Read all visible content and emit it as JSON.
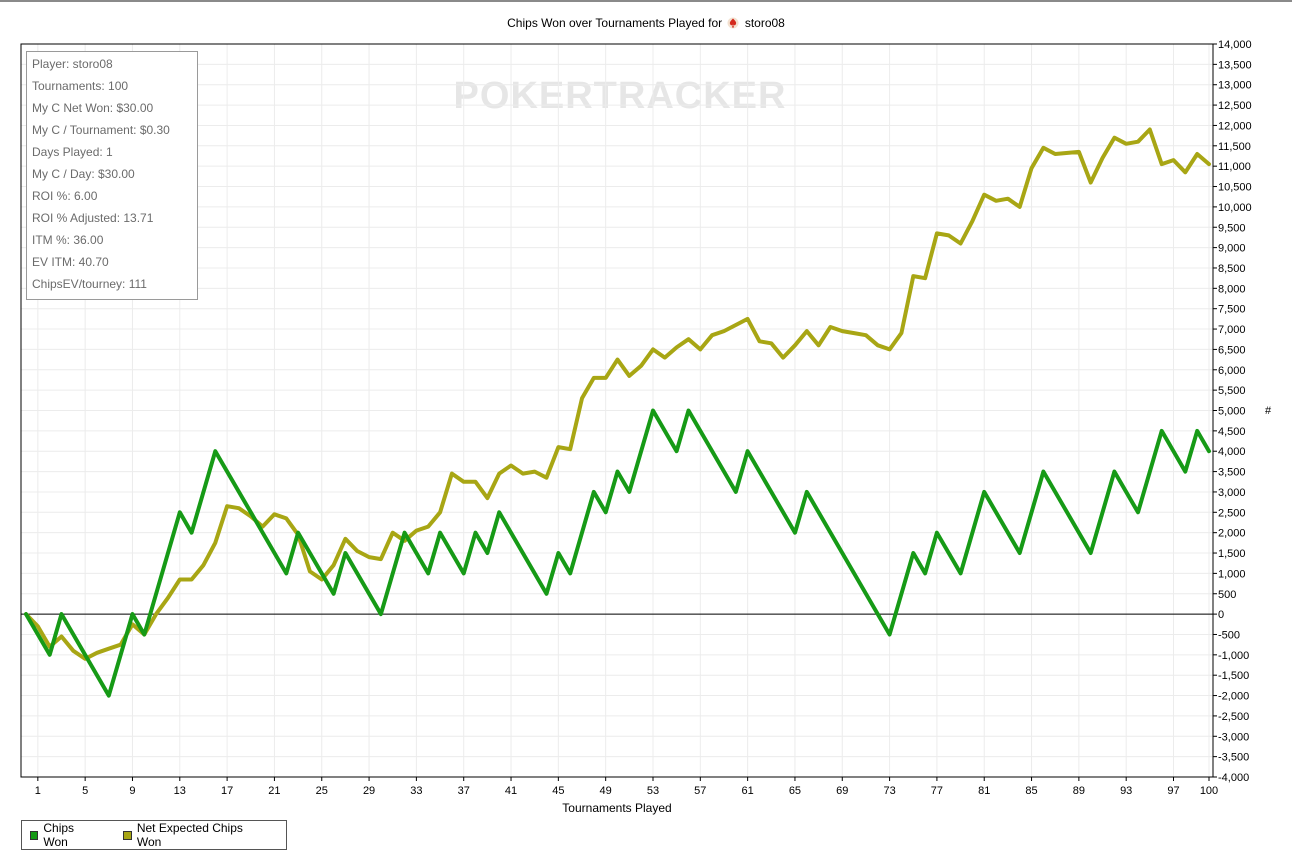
{
  "title_prefix": "Chips Won over Tournaments Played for",
  "player_name": "storo08",
  "watermark": "POKERTRACKER",
  "stats": [
    "Player: storo08",
    "Tournaments: 100",
    "My C Net Won: $30.00",
    "My C / Tournament: $0.30",
    "Days Played: 1",
    "My C / Day: $30.00",
    "ROI %: 6.00",
    "ROI % Adjusted: 13.71",
    "ITM %: 36.00",
    "EV ITM: 40.70",
    "ChipsEV/tourney: 111"
  ],
  "colors": {
    "chips_won": "#169a16",
    "net_expected": "#a8a614",
    "grid": "#ececec",
    "zero_line": "#000000"
  },
  "chart_data": {
    "type": "line",
    "title": "Chips Won over Tournaments Played for storo08",
    "xlabel": "Tournaments Played",
    "ylabel": "#",
    "xlim": [
      0,
      100
    ],
    "ylim": [
      -4000,
      14000
    ],
    "grid": true,
    "legend_position": "bottom-left",
    "x_ticks": [
      1,
      5,
      9,
      13,
      17,
      21,
      25,
      29,
      33,
      37,
      41,
      45,
      49,
      53,
      57,
      61,
      65,
      69,
      73,
      77,
      81,
      85,
      89,
      93,
      97,
      100
    ],
    "y_ticks": [
      -4000,
      -3500,
      -3000,
      -2500,
      -2000,
      -1500,
      -1000,
      -500,
      0,
      500,
      1000,
      1500,
      2000,
      2500,
      3000,
      3500,
      4000,
      4500,
      5000,
      5500,
      6000,
      6500,
      7000,
      7500,
      8000,
      8500,
      9000,
      9500,
      10000,
      10500,
      11000,
      11500,
      12000,
      12500,
      13000,
      13500,
      14000
    ],
    "y_tick_labels": [
      "-4,000",
      "-3,500",
      "-3,000",
      "-2,500",
      "-2,000",
      "-1,500",
      "-1,000",
      "-500",
      "0",
      "500",
      "1,000",
      "1,500",
      "2,000",
      "2,500",
      "3,000",
      "3,500",
      "4,000",
      "4,500",
      "5,000",
      "5,500",
      "6,000",
      "6,500",
      "7,000",
      "7,500",
      "8,000",
      "8,500",
      "9,000",
      "9,500",
      "10,000",
      "10,500",
      "11,000",
      "11,500",
      "12,000",
      "12,500",
      "13,000",
      "13,500",
      "14,000"
    ],
    "series": [
      {
        "name": "Chips Won",
        "points": [
          [
            0,
            0
          ],
          [
            2,
            -1000
          ],
          [
            3,
            0
          ],
          [
            7,
            -2000
          ],
          [
            9,
            0
          ],
          [
            10,
            -500
          ],
          [
            13,
            2500
          ],
          [
            14,
            2000
          ],
          [
            16,
            4000
          ],
          [
            22,
            1000
          ],
          [
            23,
            2000
          ],
          [
            26,
            500
          ],
          [
            27,
            1500
          ],
          [
            30,
            0
          ],
          [
            32,
            2000
          ],
          [
            34,
            1000
          ],
          [
            35,
            2000
          ],
          [
            37,
            1000
          ],
          [
            38,
            2000
          ],
          [
            39,
            1500
          ],
          [
            40,
            2500
          ],
          [
            44,
            500
          ],
          [
            45,
            1500
          ],
          [
            46,
            1000
          ],
          [
            48,
            3000
          ],
          [
            49,
            2500
          ],
          [
            50,
            3500
          ],
          [
            51,
            3000
          ],
          [
            53,
            5000
          ],
          [
            55,
            4000
          ],
          [
            56,
            5000
          ],
          [
            60,
            3000
          ],
          [
            61,
            4000
          ],
          [
            65,
            2000
          ],
          [
            66,
            3000
          ],
          [
            73,
            -500
          ],
          [
            75,
            1500
          ],
          [
            76,
            1000
          ],
          [
            77,
            2000
          ],
          [
            79,
            1000
          ],
          [
            81,
            3000
          ],
          [
            84,
            1500
          ],
          [
            86,
            3500
          ],
          [
            90,
            1500
          ],
          [
            92,
            3500
          ],
          [
            94,
            2500
          ],
          [
            96,
            4500
          ],
          [
            98,
            3500
          ],
          [
            99,
            4500
          ],
          [
            100,
            4000
          ]
        ]
      },
      {
        "name": "Net Expected Chips Won",
        "points": [
          [
            0,
            0
          ],
          [
            1,
            -300
          ],
          [
            2,
            -800
          ],
          [
            3,
            -550
          ],
          [
            4,
            -900
          ],
          [
            5,
            -1100
          ],
          [
            6,
            -950
          ],
          [
            7,
            -850
          ],
          [
            8,
            -750
          ],
          [
            9,
            -250
          ],
          [
            10,
            -500
          ],
          [
            11,
            0
          ],
          [
            12,
            400
          ],
          [
            13,
            850
          ],
          [
            14,
            850
          ],
          [
            15,
            1200
          ],
          [
            16,
            1750
          ],
          [
            17,
            2650
          ],
          [
            18,
            2600
          ],
          [
            19,
            2400
          ],
          [
            20,
            2150
          ],
          [
            21,
            2450
          ],
          [
            22,
            2350
          ],
          [
            23,
            1950
          ],
          [
            24,
            1050
          ],
          [
            25,
            850
          ],
          [
            26,
            1200
          ],
          [
            27,
            1850
          ],
          [
            28,
            1550
          ],
          [
            29,
            1400
          ],
          [
            30,
            1350
          ],
          [
            31,
            2000
          ],
          [
            32,
            1800
          ],
          [
            33,
            2050
          ],
          [
            34,
            2150
          ],
          [
            35,
            2500
          ],
          [
            36,
            3450
          ],
          [
            37,
            3250
          ],
          [
            38,
            3250
          ],
          [
            39,
            2850
          ],
          [
            40,
            3450
          ],
          [
            41,
            3650
          ],
          [
            42,
            3450
          ],
          [
            43,
            3500
          ],
          [
            44,
            3350
          ],
          [
            45,
            4100
          ],
          [
            46,
            4050
          ],
          [
            47,
            5300
          ],
          [
            48,
            5800
          ],
          [
            49,
            5800
          ],
          [
            50,
            6250
          ],
          [
            51,
            5850
          ],
          [
            52,
            6100
          ],
          [
            53,
            6500
          ],
          [
            54,
            6300
          ],
          [
            55,
            6550
          ],
          [
            56,
            6750
          ],
          [
            57,
            6500
          ],
          [
            58,
            6850
          ],
          [
            59,
            6950
          ],
          [
            60,
            7100
          ],
          [
            61,
            7250
          ],
          [
            62,
            6700
          ],
          [
            63,
            6650
          ],
          [
            64,
            6300
          ],
          [
            65,
            6600
          ],
          [
            66,
            6950
          ],
          [
            67,
            6600
          ],
          [
            68,
            7050
          ],
          [
            69,
            6950
          ],
          [
            70,
            6900
          ],
          [
            71,
            6850
          ],
          [
            72,
            6600
          ],
          [
            73,
            6500
          ],
          [
            74,
            6900
          ],
          [
            75,
            8300
          ],
          [
            76,
            8250
          ],
          [
            77,
            9350
          ],
          [
            78,
            9300
          ],
          [
            79,
            9100
          ],
          [
            80,
            9650
          ],
          [
            81,
            10300
          ],
          [
            82,
            10150
          ],
          [
            83,
            10200
          ],
          [
            84,
            10000
          ],
          [
            85,
            10950
          ],
          [
            86,
            11450
          ],
          [
            87,
            11300
          ],
          [
            89,
            11350
          ],
          [
            90,
            10600
          ],
          [
            91,
            11200
          ],
          [
            92,
            11700
          ],
          [
            93,
            11550
          ],
          [
            94,
            11600
          ],
          [
            95,
            11900
          ],
          [
            96,
            11050
          ],
          [
            97,
            11150
          ],
          [
            98,
            10850
          ],
          [
            99,
            11300
          ],
          [
            100,
            11050
          ]
        ]
      }
    ]
  }
}
